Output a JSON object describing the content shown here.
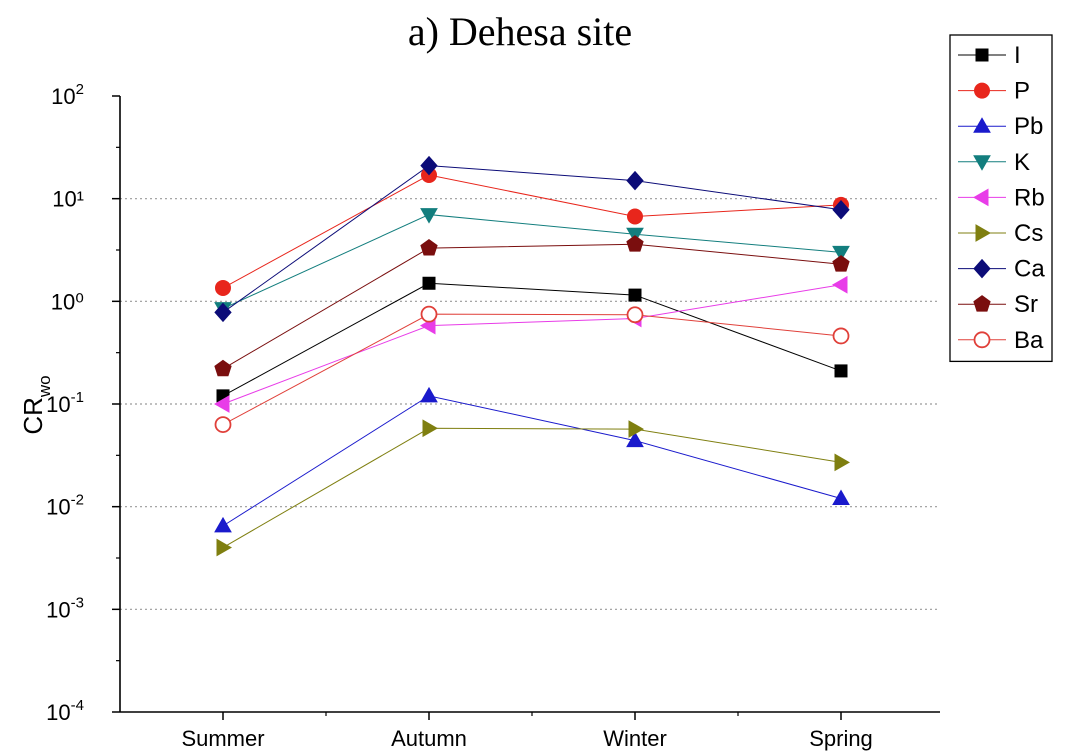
{
  "chart_data": {
    "type": "line",
    "title": "a) Dehesa site",
    "xlabel": "",
    "ylabel": {
      "main": "CR",
      "sub": "wo"
    },
    "y_scale": "log",
    "ylim": [
      0.0001,
      100
    ],
    "y_ticks": [
      {
        "value": 0.0001,
        "base": "10",
        "exp": "-4"
      },
      {
        "value": 0.001,
        "base": "10",
        "exp": "-3"
      },
      {
        "value": 0.01,
        "base": "10",
        "exp": "-2"
      },
      {
        "value": 0.1,
        "base": "10",
        "exp": "-1"
      },
      {
        "value": 1,
        "label": "10",
        "plain": true
      },
      {
        "value": 10,
        "label": "10",
        "plain": true
      },
      {
        "value": 100,
        "base": "10",
        "exp": "2"
      }
    ],
    "y_tick_plain_labels": {
      "1": "10⁰",
      "10": "10¹"
    },
    "grid": "horizontal dotted at 10^-3, 10^-2, 10^-1, 10^0, 10^1",
    "legend_position": "top-right outside",
    "categories": [
      "Summer",
      "Autumn",
      "Winter",
      "Spring"
    ],
    "series": [
      {
        "name": "I",
        "color": "#000000",
        "marker": "square",
        "filled": true,
        "values": [
          0.12,
          1.5,
          1.15,
          0.21
        ]
      },
      {
        "name": "P",
        "color": "#e8261c",
        "marker": "circle",
        "filled": true,
        "values": [
          1.35,
          17,
          6.7,
          8.7
        ]
      },
      {
        "name": "Pb",
        "color": "#1a1acc",
        "marker": "triangle-up",
        "filled": true,
        "values": [
          0.0065,
          0.12,
          0.044,
          0.012
        ]
      },
      {
        "name": "K",
        "color": "#137e7e",
        "marker": "triangle-down",
        "filled": true,
        "values": [
          0.85,
          7.0,
          4.5,
          3.0
        ]
      },
      {
        "name": "Rb",
        "color": "#e83ce8",
        "marker": "triangle-left",
        "filled": true,
        "values": [
          0.1,
          0.58,
          0.68,
          1.45
        ]
      },
      {
        "name": "Cs",
        "color": "#7f7f10",
        "marker": "triangle-right",
        "filled": true,
        "values": [
          0.004,
          0.058,
          0.057,
          0.027
        ]
      },
      {
        "name": "Ca",
        "color": "#0c0c78",
        "marker": "diamond",
        "filled": true,
        "values": [
          0.78,
          21,
          15,
          7.8
        ]
      },
      {
        "name": "Sr",
        "color": "#7a0e0e",
        "marker": "pentagon",
        "filled": true,
        "values": [
          0.22,
          3.3,
          3.6,
          2.3
        ]
      },
      {
        "name": "Ba",
        "color": "#e0403a",
        "marker": "circle",
        "filled": false,
        "values": [
          0.063,
          0.75,
          0.74,
          0.46
        ]
      }
    ]
  }
}
